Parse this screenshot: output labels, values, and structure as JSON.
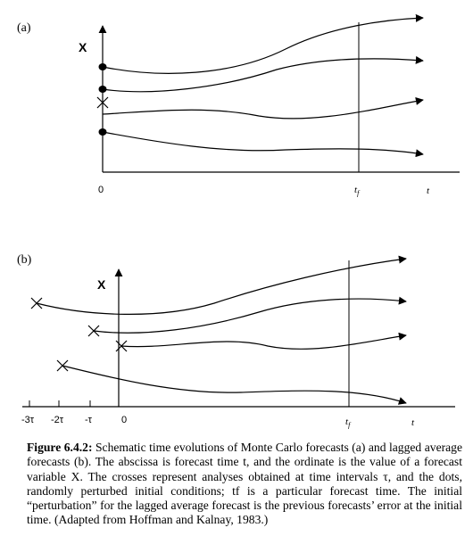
{
  "panel_a": {
    "label": "(a)",
    "y_label": "X",
    "origin_label": "0",
    "tf_label": "t",
    "tf_subscript": "f",
    "t_label": "t"
  },
  "panel_b": {
    "label": "(b)",
    "y_label": "X",
    "tick_labels": [
      "-3τ",
      "-2τ",
      "-τ",
      "0"
    ],
    "tf_label": "t",
    "tf_subscript": "f",
    "t_label": "t"
  },
  "caption": {
    "lead": "Figure 6.4.2:",
    "text": " Schematic time evolutions of Monte Carlo forecasts (a) and lagged average forecasts (b). The abscissa is forecast time t, and the ordinate is the value of a forecast variable X. The crosses represent analyses obtained at time intervals τ, and the dots, randomly perturbed initial conditions; tf is a particular forecast time. The initial “perturbation” for the lagged average forecast is the previous forecasts’ error at the initial time. (Adapted from Hoffman and Kalnay, 1983.)"
  }
}
